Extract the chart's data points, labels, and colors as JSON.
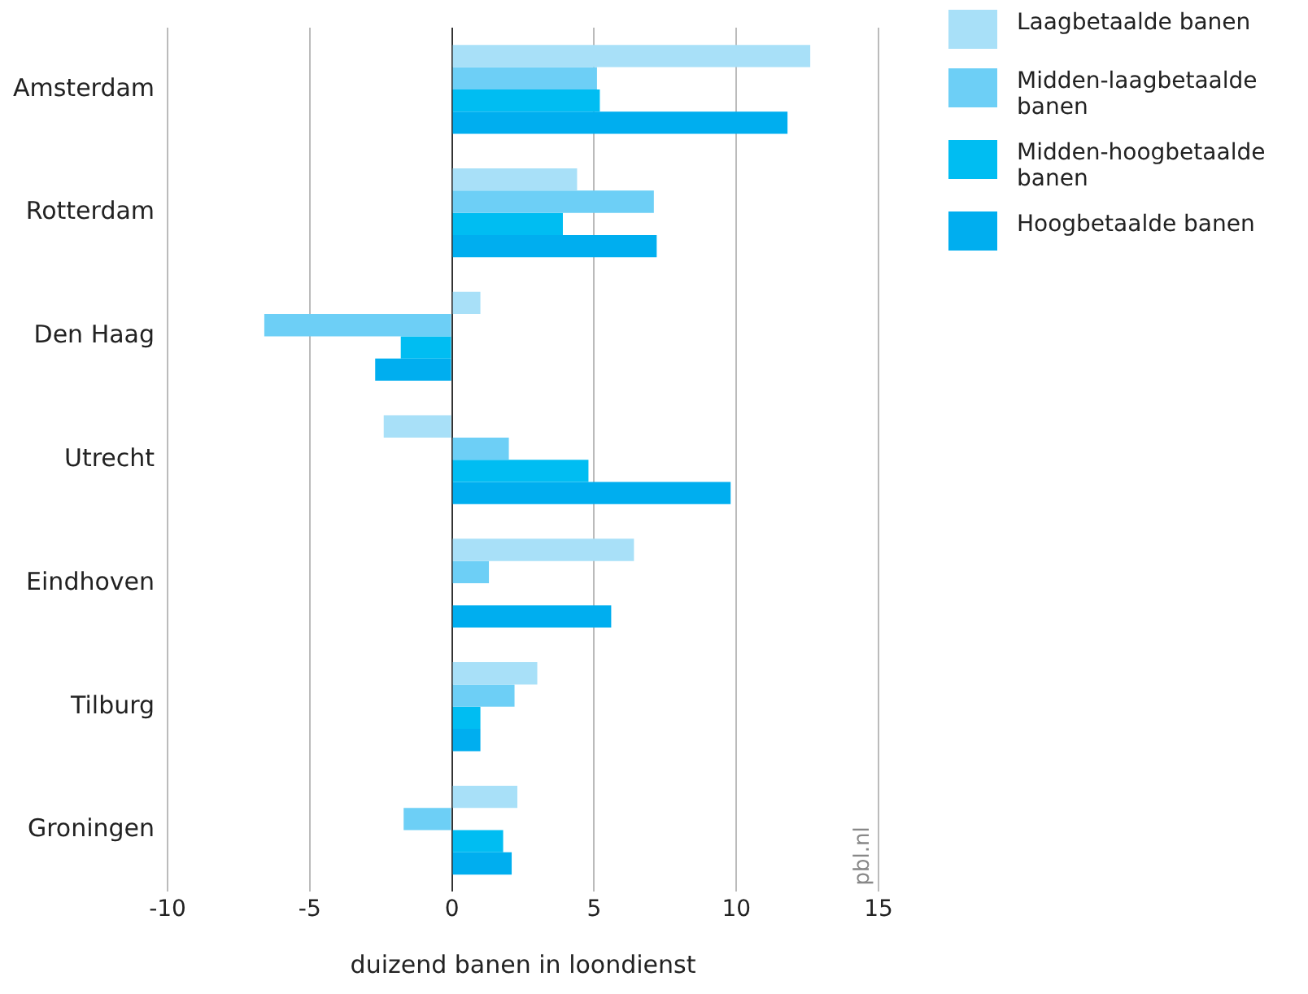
{
  "chart_data": {
    "type": "bar",
    "orientation": "horizontal",
    "xlabel": "duizend banen in loondienst",
    "categories": [
      "Amsterdam",
      "Rotterdam",
      "Den Haag",
      "Utrecht",
      "Eindhoven",
      "Tilburg",
      "Groningen"
    ],
    "series": [
      {
        "name": "Laagbetaalde banen",
        "color": "#a8e0f8",
        "values": [
          12.6,
          4.4,
          1.0,
          -2.4,
          6.4,
          3.0,
          2.3
        ]
      },
      {
        "name": "Midden-laagbetaalde banen",
        "color": "#6dcff6",
        "values": [
          5.1,
          7.1,
          -6.6,
          2.0,
          1.3,
          2.2,
          -1.7
        ]
      },
      {
        "name": "Midden-hoogbetaalde banen",
        "color": "#00bdf2",
        "values": [
          5.2,
          3.9,
          -1.8,
          4.8,
          0.0,
          1.0,
          1.8
        ]
      },
      {
        "name": "Hoogbetaalde banen",
        "color": "#00aeef",
        "values": [
          11.8,
          7.2,
          -2.7,
          9.8,
          5.6,
          1.0,
          2.1
        ]
      }
    ],
    "xlim": [
      -10,
      15
    ],
    "xticks": [
      -10,
      -5,
      0,
      5,
      10,
      15
    ],
    "grid": "x",
    "legend": "top right",
    "annotations": [
      "pbl.nl"
    ]
  }
}
